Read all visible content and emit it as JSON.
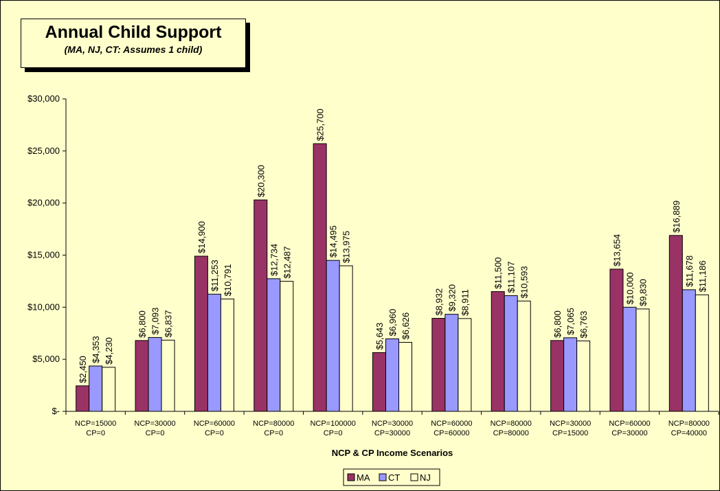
{
  "chart_data": {
    "type": "bar",
    "title": "Annual Child Support",
    "subtitle": "(MA, NJ, CT: Assumes 1 child)",
    "xlabel": "NCP & CP Income Scenarios",
    "ylabel": "",
    "ylim": [
      0,
      30000
    ],
    "yticks": [
      0,
      5000,
      10000,
      15000,
      20000,
      25000,
      30000
    ],
    "ytick_labels": [
      "$-",
      "$5,000",
      "$10,000",
      "$15,000",
      "$20,000",
      "$25,000",
      "$30,000"
    ],
    "grid": false,
    "legend_position": "bottom",
    "categories": [
      [
        "NCP=15000",
        "CP=0"
      ],
      [
        "NCP=30000",
        "CP=0"
      ],
      [
        "NCP=60000",
        "CP=0"
      ],
      [
        "NCP=80000",
        "CP=0"
      ],
      [
        "NCP=100000",
        "CP=0"
      ],
      [
        "NCP=30000",
        "CP=30000"
      ],
      [
        "NCP=60000",
        "CP=60000"
      ],
      [
        "NCP=80000",
        "CP=80000"
      ],
      [
        "NCP=30000",
        "CP=15000"
      ],
      [
        "NCP=60000",
        "CP=30000"
      ],
      [
        "NCP=80000",
        "CP=40000"
      ]
    ],
    "series": [
      {
        "name": "MA",
        "color": "#993366",
        "values": [
          2450,
          6800,
          14900,
          20300,
          25700,
          5643,
          8932,
          11500,
          6800,
          13654,
          16889
        ],
        "labels": [
          "$2,450",
          "$6,800",
          "$14,900",
          "$20,300",
          "$25,700",
          "$5,643",
          "$8,932",
          "$11,500",
          "$6,800",
          "$13,654",
          "$16,889"
        ]
      },
      {
        "name": "CT",
        "color": "#9999ff",
        "values": [
          4353,
          7093,
          11253,
          12734,
          14495,
          6960,
          9320,
          11107,
          7065,
          10000,
          11678
        ],
        "labels": [
          "$4,353",
          "$7,093",
          "$11,253",
          "$12,734",
          "$14,495",
          "$6,960",
          "$9,320",
          "$11,107",
          "$7,065",
          "$10,000",
          "$11,678"
        ]
      },
      {
        "name": "NJ",
        "color": "#ffffcc",
        "values": [
          4230,
          6837,
          10791,
          12487,
          13975,
          6626,
          8911,
          10593,
          6763,
          9830,
          11186
        ],
        "labels": [
          "$4,230",
          "$6,837",
          "$10,791",
          "$12,487",
          "$13,975",
          "$6,626",
          "$8,911",
          "$10,593",
          "$6,763",
          "$9,830",
          "$11,186"
        ]
      }
    ]
  }
}
